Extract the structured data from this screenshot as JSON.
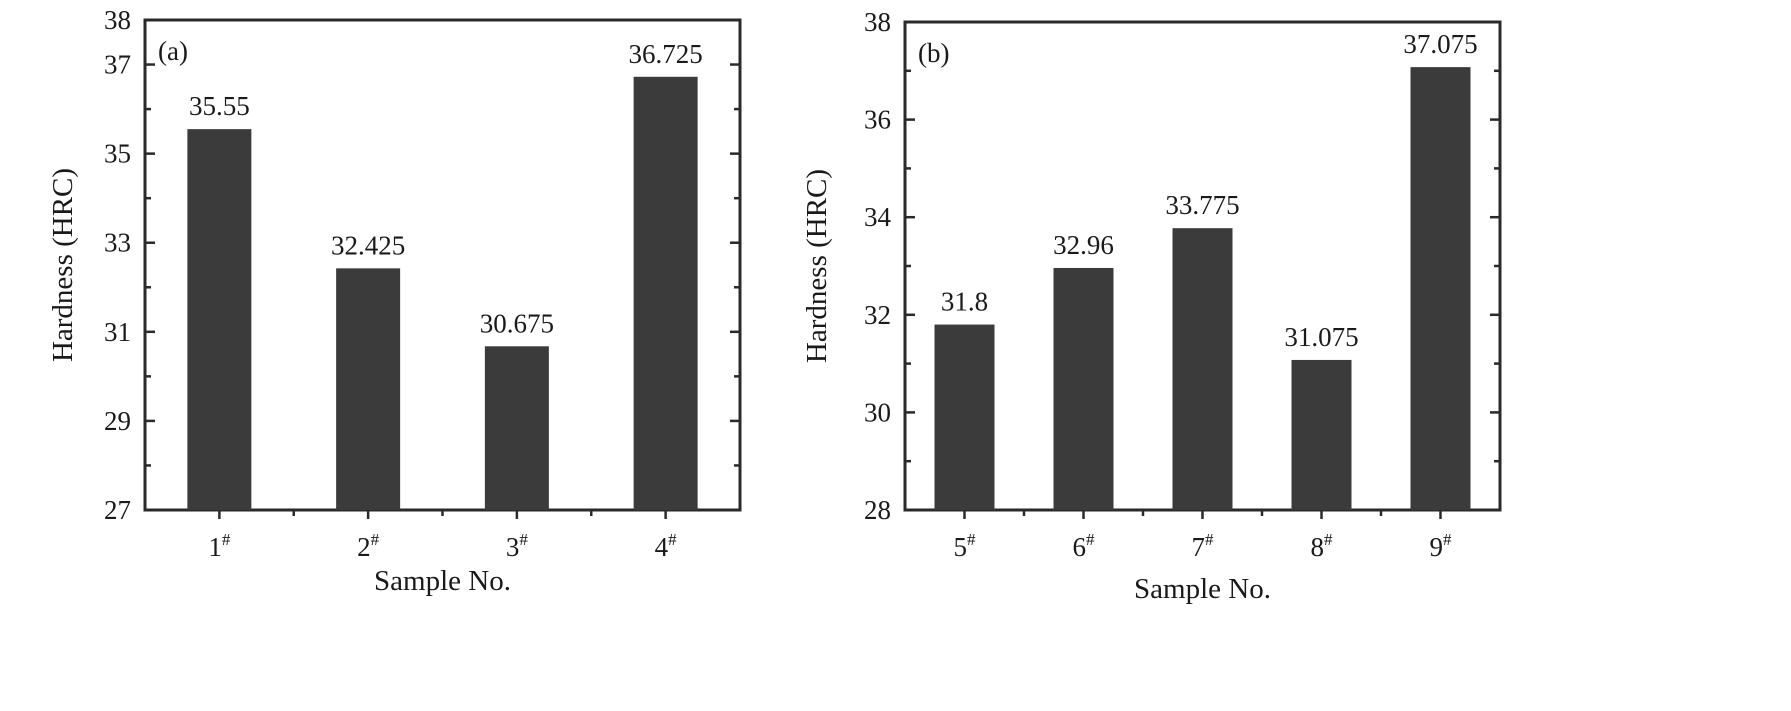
{
  "chart_data": [
    {
      "type": "bar",
      "panel_label": "(a)",
      "categories": [
        "1#",
        "2#",
        "3#",
        "4#"
      ],
      "category_tick_labels": [
        {
          "base": "1",
          "sup": "#"
        },
        {
          "base": "2",
          "sup": "#"
        },
        {
          "base": "3",
          "sup": "#"
        },
        {
          "base": "4",
          "sup": "#"
        }
      ],
      "values": [
        35.55,
        32.425,
        30.675,
        36.725
      ],
      "data_labels": [
        "35.55",
        "32.425",
        "30.675",
        "36.725"
      ],
      "xlabel": "Sample No.",
      "ylabel": "Hardness (HRC)",
      "ylim": [
        27,
        38
      ],
      "yticks": [
        27,
        29,
        31,
        33,
        35,
        37,
        38
      ],
      "grid": false,
      "legend": "none",
      "bar_color": "#3b3b3b"
    },
    {
      "type": "bar",
      "panel_label": "(b)",
      "categories": [
        "5#",
        "6#",
        "7#",
        "8#",
        "9#"
      ],
      "category_tick_labels": [
        {
          "base": "5",
          "sup": "#"
        },
        {
          "base": "6",
          "sup": "#"
        },
        {
          "base": "7",
          "sup": "#"
        },
        {
          "base": "8",
          "sup": "#"
        },
        {
          "base": "9",
          "sup": "#"
        }
      ],
      "values": [
        31.8,
        32.96,
        33.775,
        31.075,
        37.075
      ],
      "data_labels": [
        "31.8",
        "32.96",
        "33.775",
        "31.075",
        "37.075"
      ],
      "xlabel": "Sample No.",
      "ylabel": "Hardness (HRC)",
      "ylim": [
        28,
        38
      ],
      "yticks": [
        28,
        30,
        32,
        34,
        36,
        38
      ],
      "grid": false,
      "legend": "none",
      "bar_color": "#3b3b3b"
    }
  ]
}
